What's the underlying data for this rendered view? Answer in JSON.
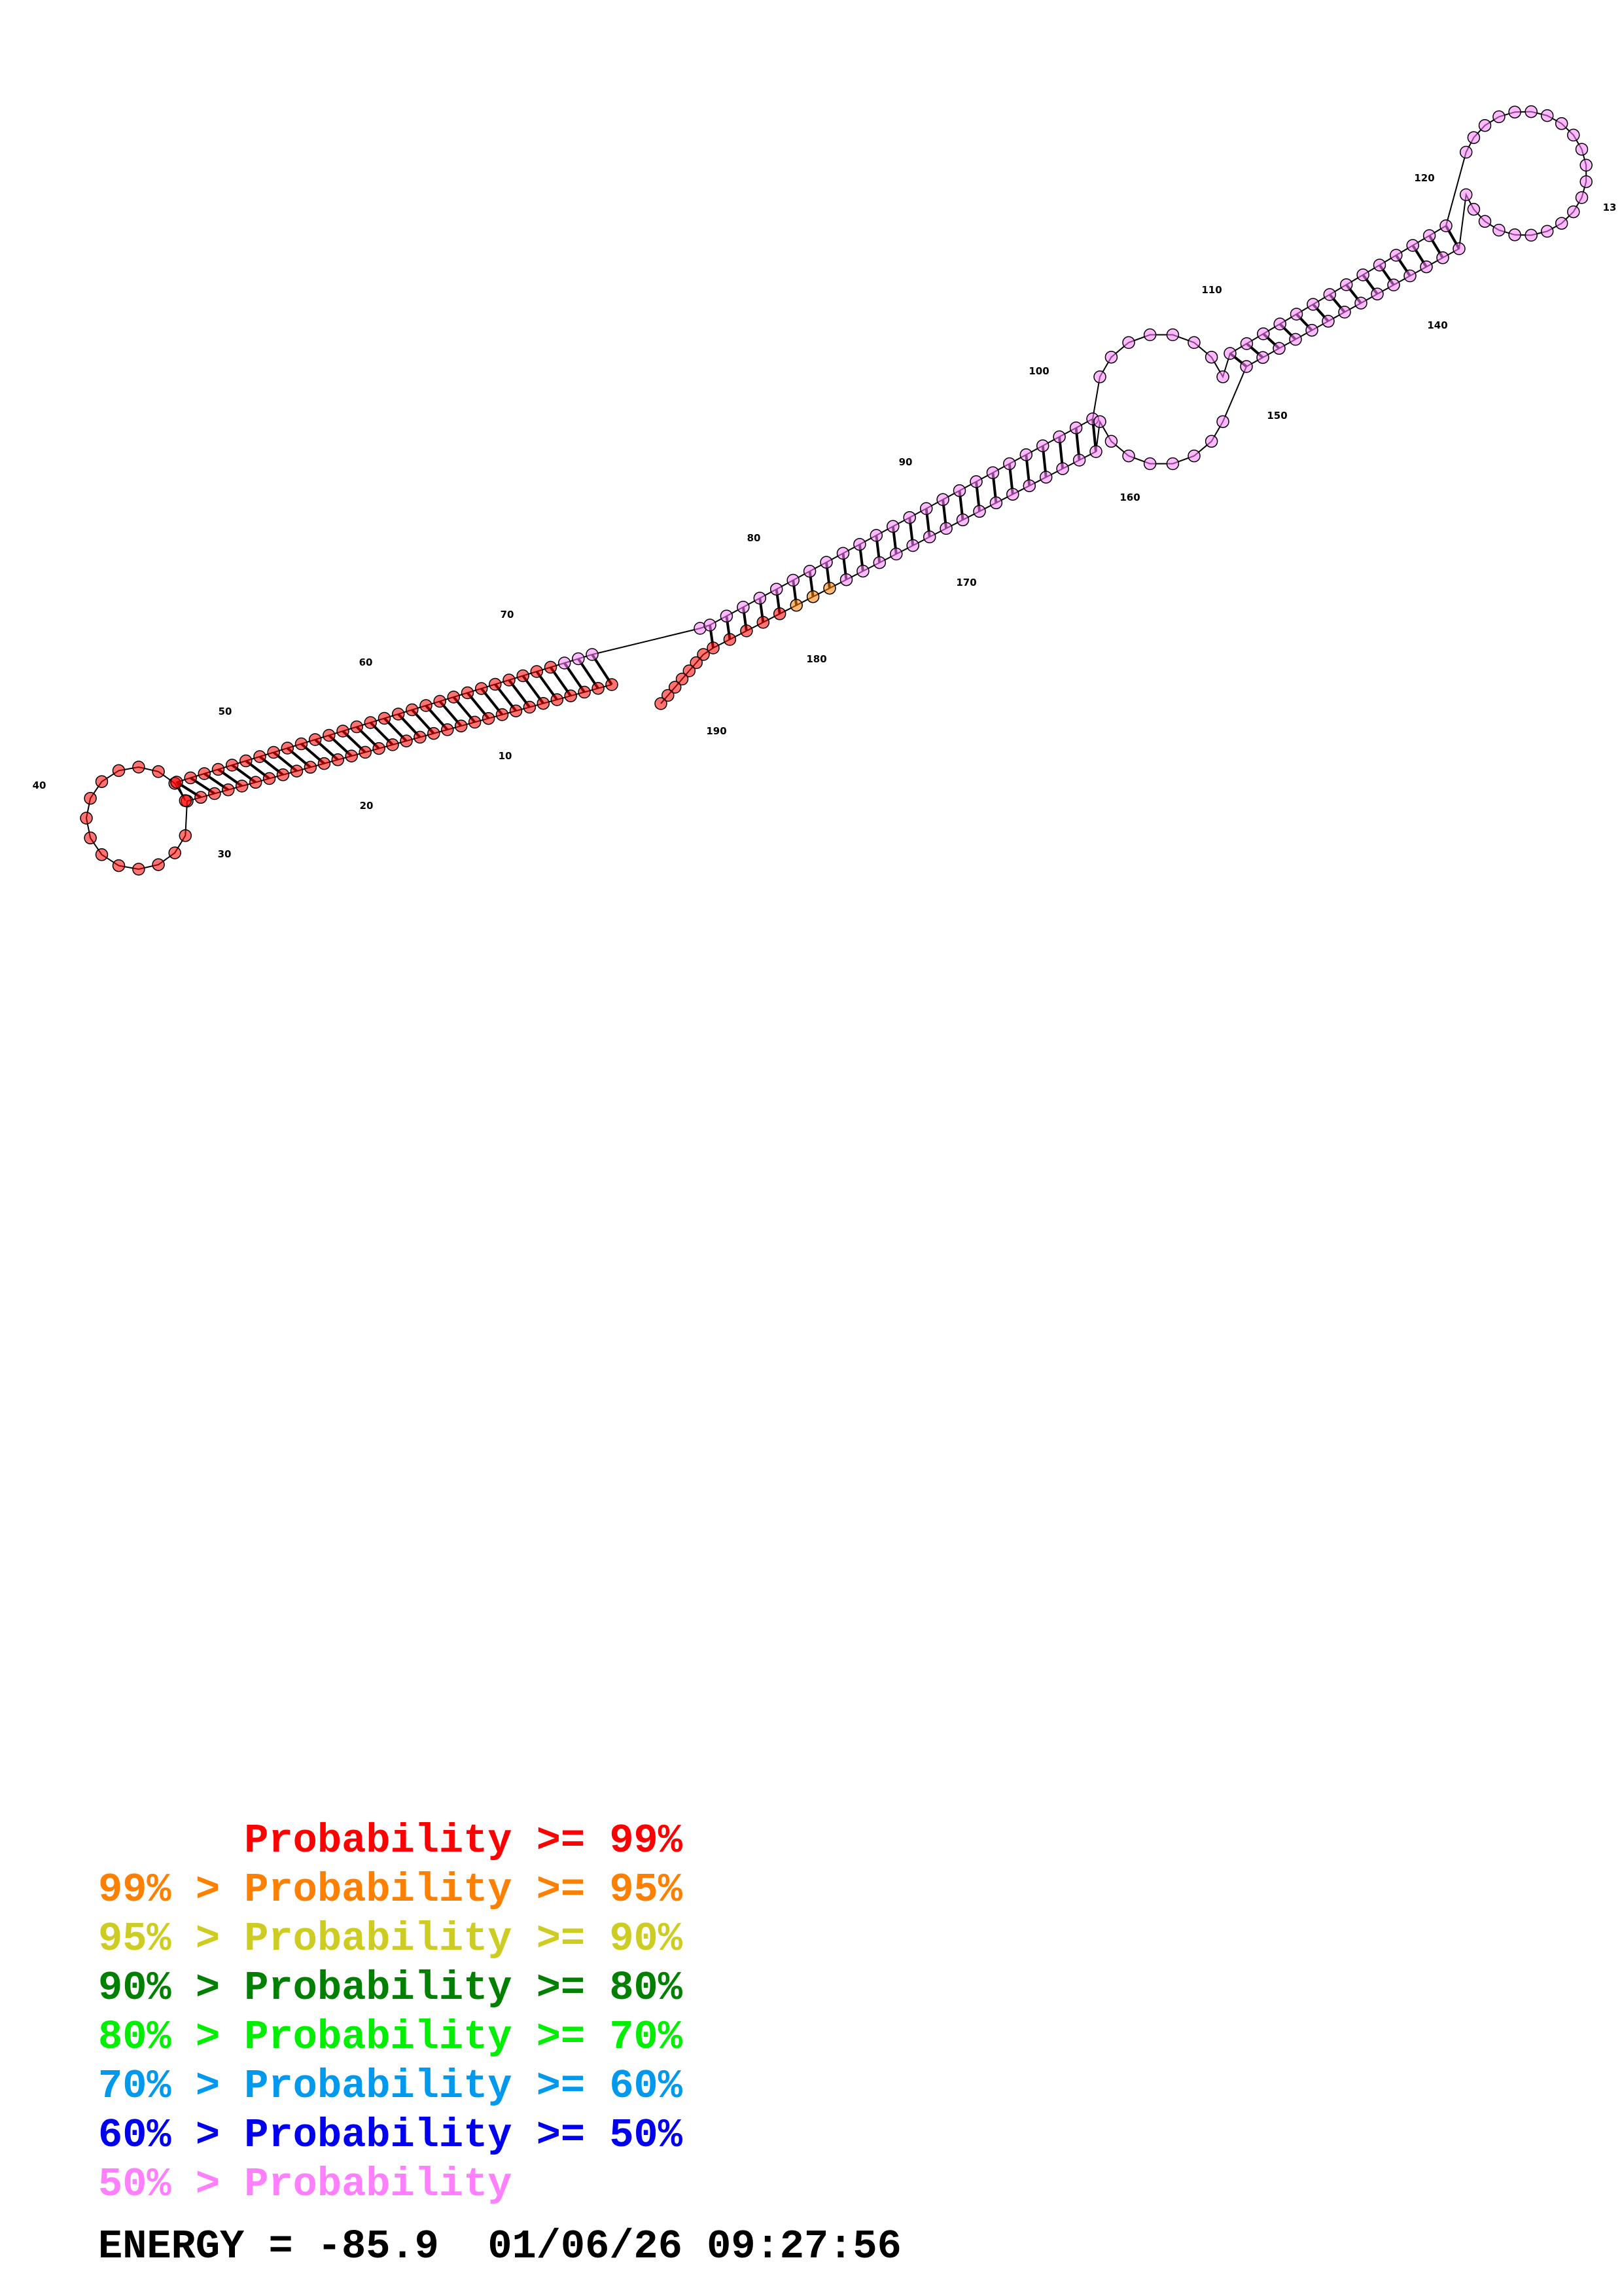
{
  "structure": {
    "numbered_positions": [
      "10",
      "20",
      "30",
      "40",
      "50",
      "60",
      "70",
      "80",
      "90",
      "100",
      "110",
      "120",
      "13",
      "140",
      "150",
      "160",
      "170",
      "180",
      "190"
    ]
  },
  "legend": [
    {
      "prefix": "",
      "label": "Probability >= 99%",
      "color": "#ff0000"
    },
    {
      "prefix": "99% > ",
      "label": "Probability >= 95%",
      "color": "#ff8000"
    },
    {
      "prefix": "95% > ",
      "label": "Probability >= 90%",
      "color": "#cccc22"
    },
    {
      "prefix": "90% > ",
      "label": "Probability >= 80%",
      "color": "#008000"
    },
    {
      "prefix": "80% > ",
      "label": "Probability >= 70%",
      "color": "#00ee00"
    },
    {
      "prefix": "70% > ",
      "label": "Probability >= 60%",
      "color": "#0099ee"
    },
    {
      "prefix": "60% > ",
      "label": "Probability >= 50%",
      "color": "#0000ee"
    },
    {
      "prefix": "50% > ",
      "label": "Probability",
      "color": "#ff80ff"
    }
  ],
  "footer": {
    "energy": "ENERGY = -85.9",
    "timestamp": "01/06/26 09:27:56"
  },
  "colors": {
    "prob_99": "#ff0000",
    "prob_95": "#ff8000",
    "prob_90": "#cccc22",
    "prob_80": "#008000",
    "prob_70": "#00ee00",
    "prob_50_below": "#ff80ff",
    "backbone": "#000000"
  }
}
